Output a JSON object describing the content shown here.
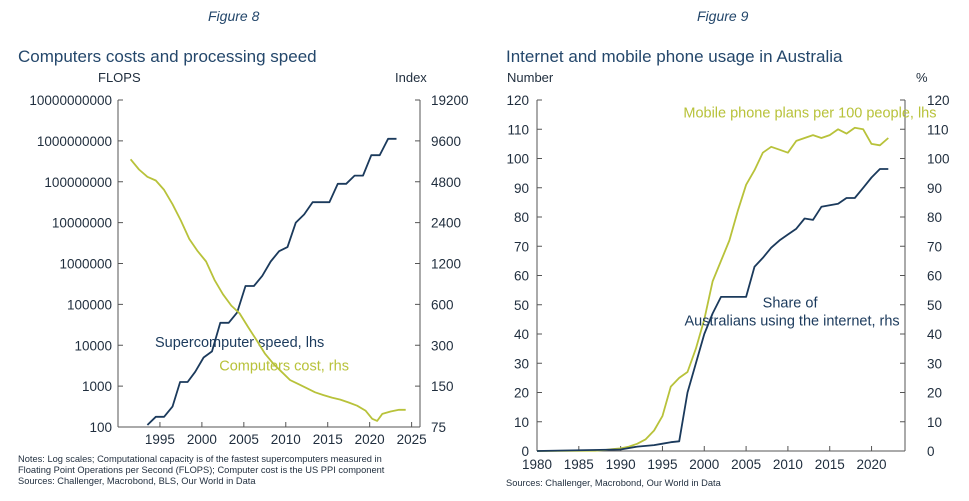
{
  "left": {
    "figure_label": "Figure 8",
    "title": "Computers costs and processing speed",
    "left_axis_label": "FLOPS",
    "right_axis_label": "Index",
    "notes": [
      "Notes: Log scales; Computational capacity is of the fastest supercomputers measured in",
      "Floating Point Operations per Second (FLOPS); Computer cost is the US PPI component",
      "Sources: Challenger, Macrobond, BLS, Our World in Data"
    ]
  },
  "right": {
    "figure_label": "Figure 9",
    "title": "Internet and mobile phone usage in Australia",
    "left_axis_label": "Number",
    "right_axis_label": "%",
    "source": "Sources: Challenger, Macrobond, Our World in Data"
  },
  "colors": {
    "navy": "#1b3a5c",
    "olive": "#b8c23a",
    "axis": "#555555"
  },
  "chart_data": [
    {
      "type": "line",
      "title": "Computers costs and processing speed",
      "scale": "log",
      "x_ticks": [
        1995,
        2000,
        2005,
        2010,
        2015,
        2020,
        2025
      ],
      "x_range": [
        1990,
        2026
      ],
      "left_axis": {
        "label": "FLOPS",
        "ticks": [
          "10000000000",
          "1000000000",
          "100000000",
          "10000000",
          "1000000",
          "100000",
          "10000",
          "1000",
          "100"
        ],
        "range_log10": [
          2,
          10
        ]
      },
      "right_axis": {
        "label": "Index",
        "ticks": [
          "19200",
          "9600",
          "4800",
          "2400",
          "1200",
          "600",
          "300",
          "150",
          "75"
        ],
        "range": [
          75,
          19200
        ]
      },
      "series": [
        {
          "name": "Supercomputer speed, lhs",
          "axis": "left",
          "color": "#1b3a5c",
          "label_position": [
            2004.5,
            3.96
          ],
          "points": [
            [
              1993.5,
              2.05
            ],
            [
              1994.5,
              2.25
            ],
            [
              1995.5,
              2.25
            ],
            [
              1996.5,
              2.5
            ],
            [
              1997.4,
              3.1
            ],
            [
              1998.3,
              3.1
            ],
            [
              1999.2,
              3.35
            ],
            [
              2000.2,
              3.7
            ],
            [
              2001.2,
              3.85
            ],
            [
              2002.2,
              4.55
            ],
            [
              2003.2,
              4.55
            ],
            [
              2004.2,
              4.8
            ],
            [
              2005.2,
              5.45
            ],
            [
              2006.2,
              5.45
            ],
            [
              2007.2,
              5.7
            ],
            [
              2008.2,
              6.05
            ],
            [
              2009.2,
              6.3
            ],
            [
              2010.2,
              6.4
            ],
            [
              2011.2,
              7.0
            ],
            [
              2012.2,
              7.2
            ],
            [
              2013.2,
              7.5
            ],
            [
              2014.2,
              7.5
            ],
            [
              2015.2,
              7.5
            ],
            [
              2016.2,
              7.95
            ],
            [
              2017.2,
              7.95
            ],
            [
              2018.2,
              8.15
            ],
            [
              2019.2,
              8.15
            ],
            [
              2020.2,
              8.65
            ],
            [
              2021.2,
              8.65
            ],
            [
              2022.2,
              9.05
            ],
            [
              2023.2,
              9.05
            ]
          ]
        },
        {
          "name": "Computers cost, rhs",
          "axis": "right",
          "color": "#b8c23a",
          "label_position": [
            2009.8,
            3.38
          ],
          "points": [
            [
              1991.5,
              8.55
            ],
            [
              1992.5,
              8.3
            ],
            [
              1993.5,
              8.12
            ],
            [
              1994.5,
              8.03
            ],
            [
              1995.5,
              7.8
            ],
            [
              1996.5,
              7.45
            ],
            [
              1997.5,
              7.05
            ],
            [
              1998.5,
              6.6
            ],
            [
              1999.5,
              6.3
            ],
            [
              2000.5,
              6.05
            ],
            [
              2001.5,
              5.6
            ],
            [
              2002.5,
              5.25
            ],
            [
              2003.5,
              4.97
            ],
            [
              2004.5,
              4.78
            ],
            [
              2005.5,
              4.45
            ],
            [
              2006.5,
              4.13
            ],
            [
              2007.5,
              3.8
            ],
            [
              2008.5,
              3.55
            ],
            [
              2009.5,
              3.35
            ],
            [
              2010.5,
              3.15
            ],
            [
              2011.5,
              3.05
            ],
            [
              2012.5,
              2.95
            ],
            [
              2013.5,
              2.85
            ],
            [
              2014.5,
              2.78
            ],
            [
              2015.5,
              2.72
            ],
            [
              2016.5,
              2.67
            ],
            [
              2017.5,
              2.6
            ],
            [
              2018.5,
              2.52
            ],
            [
              2019.5,
              2.4
            ],
            [
              2020.3,
              2.2
            ],
            [
              2020.9,
              2.15
            ],
            [
              2021.5,
              2.32
            ],
            [
              2022.5,
              2.38
            ],
            [
              2023.5,
              2.42
            ],
            [
              2024.3,
              2.42
            ]
          ]
        }
      ]
    },
    {
      "type": "line",
      "title": "Internet and mobile phone usage in Australia",
      "x_ticks": [
        1980,
        1985,
        1990,
        1995,
        2000,
        2005,
        2010,
        2015,
        2020
      ],
      "x_range": [
        1980,
        2024
      ],
      "left_axis": {
        "label": "Number",
        "ticks": [
          120,
          110,
          100,
          90,
          80,
          70,
          60,
          50,
          40,
          30,
          20,
          10,
          0
        ],
        "range": [
          0,
          120
        ]
      },
      "right_axis": {
        "label": "%",
        "ticks": [
          120,
          110,
          100,
          90,
          80,
          70,
          60,
          50,
          40,
          30,
          20,
          10,
          0
        ],
        "range": [
          0,
          120
        ]
      },
      "series": [
        {
          "name": "Mobile phone plans per 100 people, lhs",
          "axis": "left",
          "color": "#b8c23a",
          "label_position": [
            1997.5,
            114
          ],
          "points": [
            [
              1980,
              0
            ],
            [
              1987,
              0.1
            ],
            [
              1988,
              0.3
            ],
            [
              1989,
              0.6
            ],
            [
              1990,
              0.9
            ],
            [
              1991,
              1.5
            ],
            [
              1992,
              2.5
            ],
            [
              1993,
              4
            ],
            [
              1994,
              7
            ],
            [
              1995,
              12
            ],
            [
              1996,
              22
            ],
            [
              1997,
              25
            ],
            [
              1998,
              27
            ],
            [
              1999,
              35
            ],
            [
              2000,
              45
            ],
            [
              2001,
              58
            ],
            [
              2002,
              65
            ],
            [
              2003,
              72
            ],
            [
              2004,
              82
            ],
            [
              2005,
              91
            ],
            [
              2006,
              96
            ],
            [
              2007,
              102
            ],
            [
              2008,
              104
            ],
            [
              2009,
              103
            ],
            [
              2010,
              102
            ],
            [
              2011,
              106
            ],
            [
              2012,
              107
            ],
            [
              2013,
              108
            ],
            [
              2014,
              107
            ],
            [
              2015,
              108
            ],
            [
              2016,
              110
            ],
            [
              2017,
              108.5
            ],
            [
              2018,
              110.5
            ],
            [
              2019,
              110
            ],
            [
              2020,
              105
            ],
            [
              2021,
              104.5
            ],
            [
              2022,
              107
            ]
          ]
        },
        {
          "name": "Share of Australians using the internet, rhs",
          "axis": "right",
          "color": "#1b3a5c",
          "label_position": [
            2010.5,
            49
          ],
          "points": [
            [
              1980,
              0
            ],
            [
              1990,
              0.5
            ],
            [
              1992,
              1.5
            ],
            [
              1994,
              2
            ],
            [
              1995,
              2.5
            ],
            [
              1996,
              3
            ],
            [
              1997,
              3.3
            ],
            [
              1998,
              20
            ],
            [
              1999,
              30
            ],
            [
              2000,
              40
            ],
            [
              2001,
              47
            ],
            [
              2002,
              52.7
            ],
            [
              2005,
              52.7
            ],
            [
              2006,
              63
            ],
            [
              2007,
              66
            ],
            [
              2008,
              69.5
            ],
            [
              2009,
              72
            ],
            [
              2010,
              74
            ],
            [
              2011,
              76
            ],
            [
              2012,
              79.5
            ],
            [
              2013,
              79
            ],
            [
              2014,
              83.5
            ],
            [
              2015,
              84
            ],
            [
              2016,
              84.5
            ],
            [
              2017,
              86.5
            ],
            [
              2018,
              86.5
            ],
            [
              2019,
              90
            ],
            [
              2020,
              93.5
            ],
            [
              2021,
              96.4
            ],
            [
              2022,
              96.4
            ]
          ]
        }
      ]
    }
  ]
}
